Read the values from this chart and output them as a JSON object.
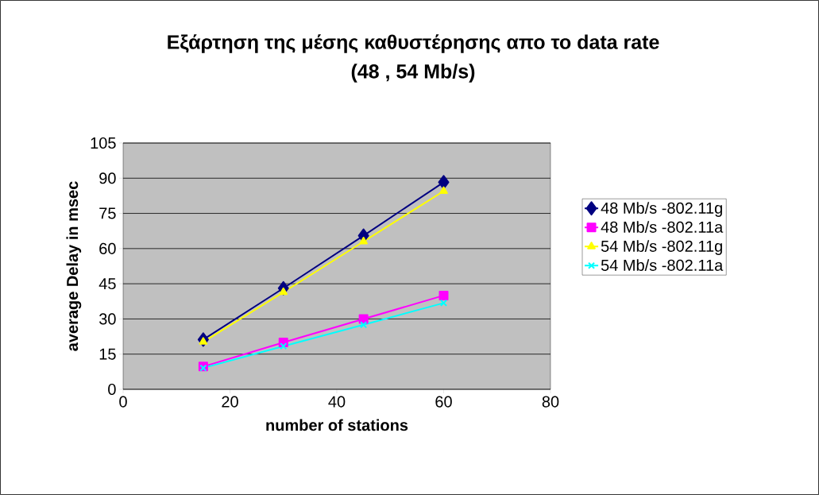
{
  "chart_data": {
    "type": "line",
    "title": "Εξάρτηση της μέσης καθυστέρησης  απο το data rate",
    "subtitle": "(48 , 54 Mb/s)",
    "xlabel": "number of stations",
    "ylabel": "average Delay in msec",
    "x": [
      15,
      30,
      45,
      60
    ],
    "series": [
      {
        "name": "48 Mb/s -802.11g",
        "color": "#000080",
        "marker": "diamond",
        "values": [
          21.2,
          43.1,
          65.5,
          88.3
        ]
      },
      {
        "name": "48 Mb/s -802.11a",
        "color": "#ff00ff",
        "marker": "square",
        "values": [
          9.7,
          20,
          30,
          40
        ]
      },
      {
        "name": "54 Mb/s -802.11g",
        "color": "#ffff00",
        "marker": "triangle",
        "values": [
          20.2,
          41.4,
          63,
          84.5
        ]
      },
      {
        "name": "54 Mb/s -802.11a",
        "color": "#00ffff",
        "marker": "cross",
        "values": [
          9.1,
          18.4,
          27.5,
          36.8
        ]
      }
    ],
    "xlim": [
      0,
      80
    ],
    "xticks": [
      0,
      20,
      40,
      60,
      80
    ],
    "ylim": [
      0,
      105
    ],
    "yticks": [
      0,
      15,
      30,
      45,
      60,
      75,
      90,
      105
    ],
    "grid": "y",
    "legend": "right",
    "line_style": "solid"
  }
}
